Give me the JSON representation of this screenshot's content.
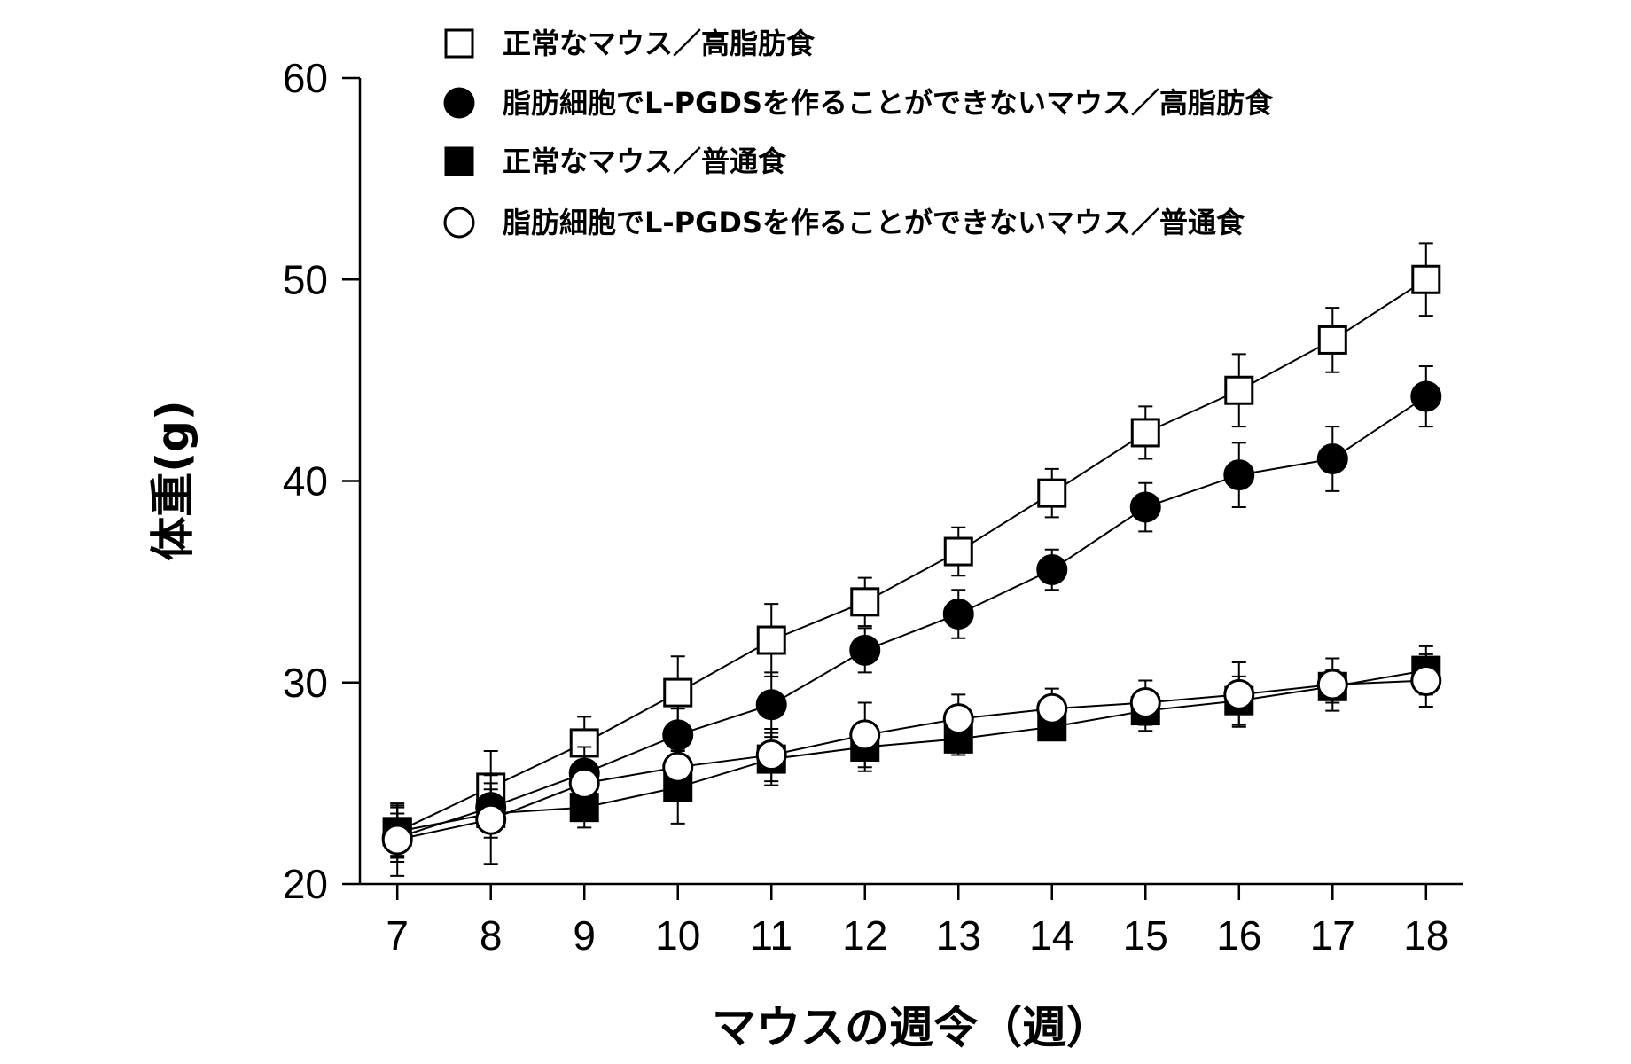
{
  "chart_data": {
    "type": "line",
    "title": "",
    "xlabel": "マウスの週令（週）",
    "ylabel": "体重(g)",
    "x": [
      7,
      8,
      9,
      10,
      11,
      12,
      13,
      14,
      15,
      16,
      17,
      18
    ],
    "xlim": [
      6.6,
      18.4
    ],
    "ylim": [
      20,
      60
    ],
    "y_ticks": [
      20,
      30,
      40,
      50,
      60
    ],
    "grid": false,
    "legend_position": "top",
    "series": [
      {
        "name": "正常なマウス／高脂肪食",
        "marker": "square-open",
        "values": [
          22.6,
          24.8,
          27.0,
          29.5,
          32.1,
          34.0,
          36.5,
          39.4,
          42.4,
          44.5,
          47.0,
          50.0
        ],
        "errors": [
          1.3,
          1.8,
          1.3,
          1.8,
          1.8,
          1.2,
          1.2,
          1.2,
          1.3,
          1.8,
          1.6,
          1.8
        ]
      },
      {
        "name": "脂肪細胞でL-PGDSを作ることができないマウス／高脂肪食",
        "marker": "circle-filled",
        "values": [
          22.3,
          23.8,
          25.5,
          27.4,
          28.9,
          31.6,
          33.4,
          35.6,
          38.7,
          40.3,
          41.1,
          44.2
        ],
        "errors": [
          1.2,
          1.2,
          1.3,
          1.3,
          1.6,
          1.1,
          1.2,
          1.0,
          1.2,
          1.6,
          1.6,
          1.5
        ]
      },
      {
        "name": "正常なマウス／普通食",
        "marker": "square-filled",
        "values": [
          22.6,
          23.5,
          23.8,
          24.8,
          26.2,
          26.8,
          27.2,
          27.8,
          28.6,
          29.1,
          29.8,
          30.6
        ],
        "errors": [
          1.2,
          1.2,
          1.0,
          1.8,
          1.3,
          1.2,
          0.8,
          0.6,
          1.0,
          1.2,
          0.8,
          1.2
        ]
      },
      {
        "name": "脂肪細胞でL-PGDSを作ることができないマウス／普通食",
        "marker": "circle-open",
        "values": [
          22.2,
          23.2,
          25.0,
          25.8,
          26.4,
          27.4,
          28.2,
          28.7,
          29.0,
          29.4,
          29.9,
          30.1
        ],
        "errors": [
          1.8,
          2.2,
          0.8,
          0.9,
          1.3,
          1.6,
          1.2,
          1.0,
          1.1,
          1.6,
          1.3,
          1.3
        ]
      }
    ]
  }
}
